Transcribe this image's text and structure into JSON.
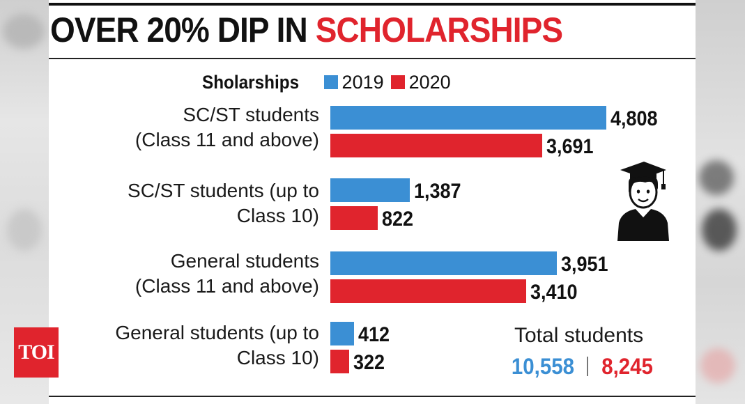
{
  "headline": {
    "prefix": "OVER 20% DIP IN",
    "accent": "SCHOLARSHIPS"
  },
  "legend": {
    "title": "Sholarships",
    "items": [
      {
        "label": "2019",
        "color": "#3b8fd4"
      },
      {
        "label": "2020",
        "color": "#e0242d"
      }
    ]
  },
  "chart_data": {
    "type": "bar",
    "orientation": "horizontal",
    "title": "OVER 20% DIP IN SCHOLARSHIPS",
    "categories": [
      [
        "SC/ST students",
        "(Class 11 and above)"
      ],
      [
        "SC/ST students (up to",
        "Class 10)"
      ],
      [
        "General students",
        "(Class 11 and above)"
      ],
      [
        "General students (up to",
        "Class 10)"
      ]
    ],
    "series": [
      {
        "name": "2019",
        "color": "#3b8fd4",
        "values": [
          4808,
          1387,
          3951,
          412
        ],
        "labels": [
          "4,808",
          "1,387",
          "3,951",
          "412"
        ]
      },
      {
        "name": "2020",
        "color": "#e0242d",
        "values": [
          3691,
          822,
          3410,
          322
        ],
        "labels": [
          "3,691",
          "822",
          "3,410",
          "322"
        ]
      }
    ],
    "xlim": [
      0,
      4808
    ],
    "grid": false,
    "legend": "top"
  },
  "totals": {
    "label": "Total students",
    "value_2019": "10,558",
    "value_2020": "8,245",
    "color_2019": "#3b8fd4",
    "color_2020": "#e0242d"
  },
  "icon": "graduate-icon",
  "logo": {
    "text": "TOI",
    "color": "#e0242d"
  }
}
